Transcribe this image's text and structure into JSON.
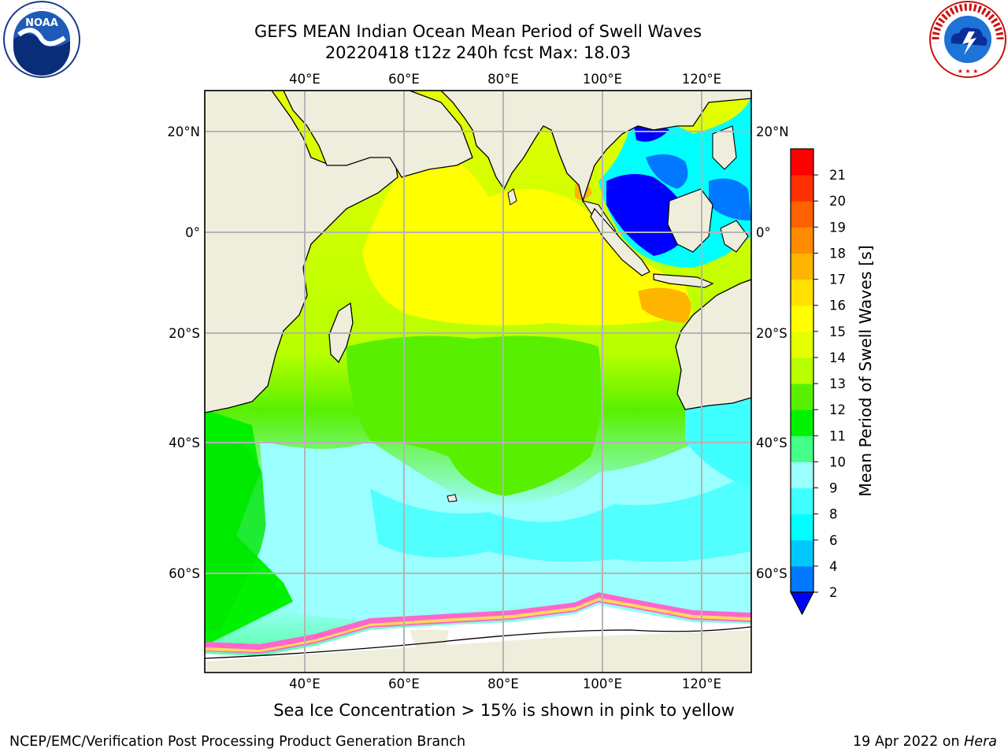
{
  "title": {
    "line1": "GEFS MEAN Indian Ocean Mean Period of Swell Waves",
    "line2": "20220418 t12z 240h fcst   Max: 18.03"
  },
  "logos": {
    "left": {
      "icon": "noaa-logo",
      "text": "NOAA",
      "ring_text": "NATIONAL OCEANIC AND ATMOSPHERIC ADMINISTRATION · U.S. DEPARTMENT OF COMMERCE"
    },
    "right": {
      "icon": "nws-logo",
      "ring_text": "NATIONAL WEATHER SERVICE"
    }
  },
  "map": {
    "longitude_labels": [
      "40°E",
      "60°E",
      "80°E",
      "100°E",
      "120°E"
    ],
    "latitude_labels": [
      "20°N",
      "0°",
      "20°S",
      "40°S",
      "60°S"
    ],
    "lon_range": [
      20,
      130
    ],
    "lat_range": [
      -75,
      28
    ],
    "land_color": "#efeddc",
    "grid_color": "#b4b4b4"
  },
  "colorbar": {
    "label": "Mean Period of Swell Waves [s]",
    "ticks": [
      "2",
      "4",
      "6",
      "8",
      "9",
      "10",
      "11",
      "12",
      "13",
      "14",
      "15",
      "16",
      "17",
      "18",
      "19",
      "20",
      "21"
    ],
    "colors": [
      "#0078ff",
      "#00c8ff",
      "#00ffff",
      "#40ffff",
      "#9cffff",
      "#44ff88",
      "#00f200",
      "#58f000",
      "#b8ff00",
      "#e6ff00",
      "#ffff00",
      "#ffe000",
      "#ffb400",
      "#ff8c00",
      "#ff6000",
      "#ff3000",
      "#ff0000"
    ],
    "under_color": "#0000ff"
  },
  "caption": "Sea Ice Concentration > 15% is shown in pink to yellow",
  "footer": {
    "left": "NCEP/EMC/Verification Post Processing Product Generation Branch",
    "right_date": "19 Apr 2022 on ",
    "right_host": "Hera"
  }
}
